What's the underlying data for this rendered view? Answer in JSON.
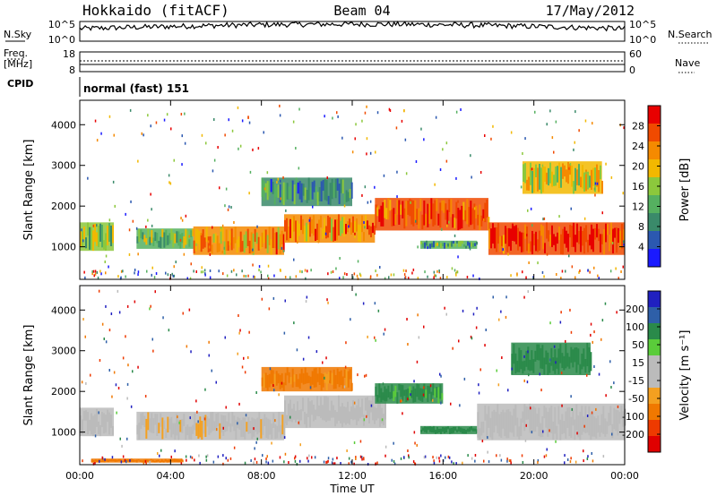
{
  "header": {
    "station": "Hokkaido (fitACF)",
    "beam": "Beam 04",
    "date": "17/May/2012"
  },
  "left_labels": {
    "nsky": "N.Sky",
    "freq": "Freq.",
    "freq_unit": "[MHz]",
    "cpid": "CPID",
    "nsky_ticks": [
      "10^5",
      "10^0"
    ],
    "freq_ticks": [
      "18",
      "8"
    ]
  },
  "right_labels": {
    "nsearch": "N.Search",
    "nave": "Nave",
    "nsearch_ticks": [
      "10^5",
      "10^0"
    ],
    "nave_ticks": [
      "60",
      "0"
    ]
  },
  "cpid_text": "normal (fast) 151",
  "colors": {
    "power_scale": [
      "#1a1aff",
      "#2b58b0",
      "#3a8a6a",
      "#55b060",
      "#8cc83c",
      "#f2b800",
      "#f58a00",
      "#f04a00",
      "#e80000"
    ],
    "velocity_scale": [
      "#2020c0",
      "#2e5fa8",
      "#2a8a4a",
      "#5acc3a",
      "#bbbbbb",
      "#bbbbbb",
      "#f4a020",
      "#f07800",
      "#ee3a00",
      "#e00000"
    ]
  },
  "chart_data": [
    {
      "type": "heatmap",
      "panel": "power",
      "title": "",
      "ylabel": "Slant Range [km]",
      "ylim": [
        200,
        4600
      ],
      "yticks": [
        "1000",
        "2000",
        "3000",
        "4000"
      ],
      "xlim": [
        "00:00",
        "24:00"
      ],
      "colorbar_label": "Power [dB]",
      "colorbar_ticks": [
        "4",
        "8",
        "12",
        "16",
        "20",
        "24",
        "28"
      ],
      "colorbar_range": [
        0,
        32
      ],
      "echo_bands": [
        {
          "t": [
            0.0,
            1.5
          ],
          "range": [
            900,
            1600
          ],
          "value": 16
        },
        {
          "t": [
            2.5,
            5.0
          ],
          "range": [
            950,
            1450
          ],
          "value": 14
        },
        {
          "t": [
            5.0,
            9.0
          ],
          "range": [
            800,
            1500
          ],
          "value": 22
        },
        {
          "t": [
            9.0,
            13.0
          ],
          "range": [
            1100,
            1800
          ],
          "value": 24
        },
        {
          "t": [
            13.0,
            18.0
          ],
          "range": [
            1400,
            2200
          ],
          "value": 26
        },
        {
          "t": [
            18.0,
            24.0
          ],
          "range": [
            800,
            1600
          ],
          "value": 28
        },
        {
          "t": [
            15.0,
            17.5
          ],
          "range": [
            950,
            1150
          ],
          "value": 12
        },
        {
          "t": [
            19.5,
            23.0
          ],
          "range": [
            2300,
            3100
          ],
          "value": 18
        },
        {
          "t": [
            8.0,
            12.0
          ],
          "range": [
            2000,
            2700
          ],
          "value": 10
        }
      ]
    },
    {
      "type": "heatmap",
      "panel": "velocity",
      "title": "",
      "xlabel": "Time UT",
      "ylabel": "Slant Range [km]",
      "ylim": [
        200,
        4600
      ],
      "yticks": [
        "1000",
        "2000",
        "3000",
        "4000"
      ],
      "xlim": [
        "00:00",
        "24:00"
      ],
      "xticks": [
        "00:00",
        "04:00",
        "08:00",
        "12:00",
        "16:00",
        "20:00",
        "00:00"
      ],
      "colorbar_label": "Velocity [m s⁻¹]",
      "colorbar_ticks": [
        "200",
        "100",
        "50",
        "15",
        "-15",
        "-50",
        "-100",
        "-200"
      ],
      "echo_bands": [
        {
          "t": [
            0.0,
            1.5
          ],
          "range": [
            900,
            1600
          ],
          "value": 0
        },
        {
          "t": [
            2.5,
            9.0
          ],
          "range": [
            800,
            1500
          ],
          "value": -5
        },
        {
          "t": [
            9.0,
            13.5
          ],
          "range": [
            1100,
            1900
          ],
          "value": 0
        },
        {
          "t": [
            13.0,
            16.0
          ],
          "range": [
            1700,
            2200
          ],
          "value": 40
        },
        {
          "t": [
            15.0,
            17.5
          ],
          "range": [
            950,
            1150
          ],
          "value": 45
        },
        {
          "t": [
            17.5,
            24.0
          ],
          "range": [
            800,
            1700
          ],
          "value": 0
        },
        {
          "t": [
            19.0,
            22.5
          ],
          "range": [
            2400,
            3200
          ],
          "value": 50
        },
        {
          "t": [
            0.5,
            4.5
          ],
          "range": [
            250,
            350
          ],
          "value": -60
        },
        {
          "t": [
            8.0,
            12.0
          ],
          "range": [
            2000,
            2600
          ],
          "value": -40
        }
      ]
    }
  ]
}
